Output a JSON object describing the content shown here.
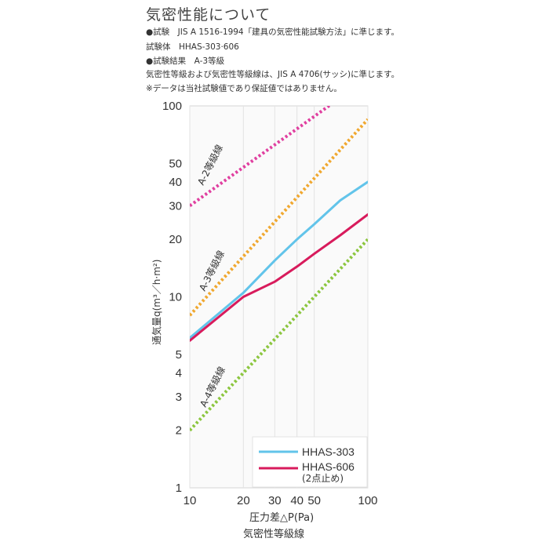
{
  "header": {
    "title": "気密性能について",
    "lines": [
      "●試験　JIS A 1516-1994「建具の気密性能試験方法」に準じます。",
      "試験体　HHAS-303·606",
      "●試験結果　A-3等級",
      "気密性等級および気密性等級線は、JIS A 4706(サッシ)に準じます。",
      "※データは当社試験値であり保証値ではありません。"
    ]
  },
  "chart_data": {
    "type": "line",
    "title": "",
    "xlabel": "圧力差△P(Pa)",
    "ylabel": "通気量q(m³／h·m²)",
    "caption": "気密性等級線",
    "x_scale": "log",
    "y_scale": "log",
    "xlim": [
      10,
      100
    ],
    "ylim": [
      1,
      100
    ],
    "x_ticks": [
      10,
      20,
      30,
      40,
      50,
      100
    ],
    "x_tick_labels": [
      "10",
      "20",
      "30",
      "40",
      "50",
      "100"
    ],
    "y_ticks": [
      1,
      2,
      3,
      4,
      5,
      10,
      20,
      30,
      40,
      50,
      100
    ],
    "y_tick_labels": [
      "1",
      "2",
      "3",
      "4",
      "5",
      "10",
      "20",
      "30",
      "40",
      "50",
      "100"
    ],
    "grid": "vertical",
    "legend": "bottom-right",
    "grade_lines": [
      {
        "label": "A-2等級線",
        "color": "#e040a0",
        "x": [
          10,
          100
        ],
        "y": [
          30,
          140
        ]
      },
      {
        "label": "A-3等級線",
        "color": "#f0a830",
        "x": [
          10,
          100
        ],
        "y": [
          8,
          85
        ]
      },
      {
        "label": "A-4等級線",
        "color": "#8cc63f",
        "x": [
          10,
          100
        ],
        "y": [
          2,
          20
        ]
      }
    ],
    "series": [
      {
        "name": "HHAS-303",
        "color": "#62c4ea",
        "x": [
          10,
          20,
          30,
          40,
          50,
          70,
          100
        ],
        "y": [
          6.1,
          10.5,
          15.5,
          20,
          24,
          32,
          40
        ]
      },
      {
        "name": "HHAS-606",
        "sub": "(2点止め)",
        "color": "#d81b5c",
        "x": [
          10,
          20,
          30,
          40,
          50,
          70,
          100
        ],
        "y": [
          5.9,
          10,
          12,
          14.4,
          16.8,
          21,
          27
        ]
      }
    ]
  }
}
